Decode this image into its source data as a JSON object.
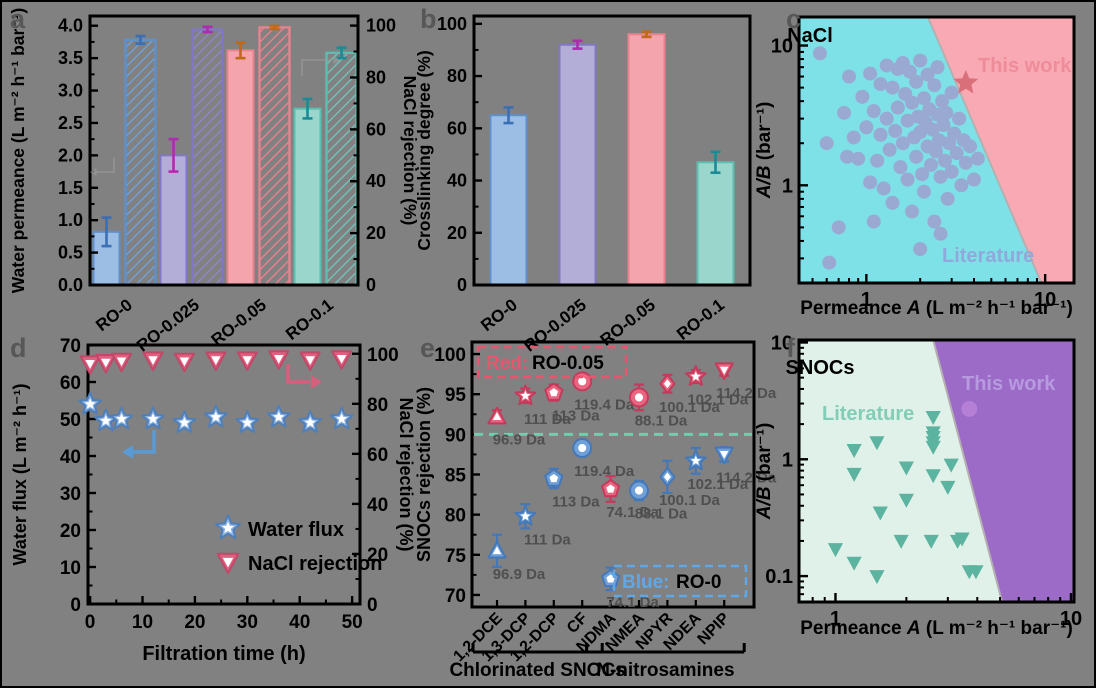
{
  "figure": {
    "background": "#818181"
  },
  "panel_letters": {
    "a": "a",
    "b": "b",
    "c": "c",
    "d": "d",
    "e": "e",
    "f": "f"
  },
  "chart_data": [
    {
      "id": "a",
      "type": "bar",
      "categories": [
        "RO-0",
        "RO-0.025",
        "RO-0.05",
        "RO-0.1"
      ],
      "left_axis": {
        "label": "Water permeance (L m⁻² h⁻¹ bar⁻¹)",
        "ticks": [
          0.0,
          0.5,
          1.0,
          1.5,
          2.0,
          2.5,
          3.0,
          3.5,
          4.0
        ],
        "max": 4.15
      },
      "right_axis": {
        "label": "NaCl rejection (%)",
        "ticks": [
          0,
          20,
          40,
          60,
          80,
          100
        ],
        "max": 103.7
      },
      "series": [
        {
          "name": "Water permeance",
          "style": "solid",
          "values": [
            0.82,
            2.0,
            3.62,
            2.72
          ],
          "errors": [
            0.22,
            0.25,
            0.12,
            0.15
          ]
        },
        {
          "name": "NaCl rejection",
          "style": "hatched",
          "values": [
            94.5,
            98.5,
            99.3,
            89.5
          ],
          "errors": [
            1.5,
            1.0,
            0.6,
            2.0
          ]
        }
      ],
      "bar_fill": [
        "#9DBEE4",
        "#B3AED8",
        "#F4A4AC",
        "#9AD6CC"
      ],
      "bar_edge": [
        "#5E90CC",
        "#8078C2",
        "#E8828E",
        "#5FBDB0"
      ],
      "hatch_color": [
        "#6FA3DC",
        "#8F86CE",
        "#F0808E",
        "#6FC8BC"
      ],
      "err_color": [
        "#3A6FB5",
        "#B02BB0",
        "#BE6A16",
        "#1B8A96"
      ]
    },
    {
      "id": "b",
      "type": "bar",
      "categories": [
        "RO-0",
        "RO-0.025",
        "RO-0.05",
        "RO-0.1"
      ],
      "left_axis": {
        "label": "Crosslinking degree (%)",
        "ticks": [
          0,
          20,
          40,
          60,
          80,
          100
        ],
        "max": 103
      },
      "series": [
        {
          "name": "Crosslinking degree",
          "style": "solid",
          "values": [
            65,
            92,
            96,
            47
          ],
          "errors": [
            3,
            1.5,
            1,
            4
          ]
        }
      ],
      "bar_fill": [
        "#9DBEE4",
        "#B3AED8",
        "#F4A4AC",
        "#9AD6CC"
      ],
      "bar_edge": [
        "#5E90CC",
        "#8078C2",
        "#E8828E",
        "#5FBDB0"
      ],
      "err_color": [
        "#3A6FB5",
        "#B02BB0",
        "#BE6A16",
        "#1B8A96"
      ]
    },
    {
      "id": "c",
      "type": "scatter-log",
      "title": "NaCl",
      "xlabel": {
        "pre": "Permeance ",
        "it": "A",
        "post": " (L m⁻² h⁻¹ bar⁻¹)"
      },
      "ylabel": {
        "it": "A/B",
        "post": " (bar⁻¹)"
      },
      "x_ticks": [
        1,
        10
      ],
      "y_ticks": [
        1,
        10
      ],
      "xlim": [
        0.42,
        14.5
      ],
      "ylim": [
        0.2,
        16
      ],
      "regions": {
        "literature_color": "#7EE1E7",
        "thiswork_color": "#F9A9B3",
        "boundary": {
          "top": [
            2.21,
            16
          ],
          "bottom": [
            9.53,
            0.2
          ]
        }
      },
      "literature_label": "Literature",
      "thiswork_label": "This work",
      "literature_color_text": "#90A9DB",
      "thiswork_color_text": "#EE8C99",
      "point_color": "#9AA9D2",
      "star_color": "#D96F79",
      "this_work_point": [
        3.6,
        5.4
      ],
      "points": [
        [
          0.55,
          8.8
        ],
        [
          0.62,
          0.28
        ],
        [
          0.75,
          3.3
        ],
        [
          0.78,
          1.6
        ],
        [
          0.8,
          6.0
        ],
        [
          0.85,
          2.2
        ],
        [
          0.9,
          1.55
        ],
        [
          0.95,
          4.3
        ],
        [
          1.0,
          2.6
        ],
        [
          1.05,
          6.3
        ],
        [
          1.05,
          1.05
        ],
        [
          1.1,
          3.4
        ],
        [
          1.15,
          1.5
        ],
        [
          1.2,
          5.3
        ],
        [
          1.2,
          2.3
        ],
        [
          1.25,
          0.95
        ],
        [
          1.3,
          7.2
        ],
        [
          1.3,
          3.0
        ],
        [
          1.35,
          1.8
        ],
        [
          1.4,
          5.0
        ],
        [
          1.4,
          0.75
        ],
        [
          1.45,
          2.45
        ],
        [
          1.5,
          6.8
        ],
        [
          1.5,
          3.6
        ],
        [
          1.55,
          1.35
        ],
        [
          1.6,
          7.5
        ],
        [
          1.6,
          2.0
        ],
        [
          1.65,
          4.5
        ],
        [
          1.7,
          1.1
        ],
        [
          1.7,
          2.9
        ],
        [
          1.75,
          6.5
        ],
        [
          1.8,
          3.9
        ],
        [
          1.8,
          0.65
        ],
        [
          1.85,
          2.2
        ],
        [
          1.9,
          5.5
        ],
        [
          1.9,
          1.6
        ],
        [
          1.95,
          3.1
        ],
        [
          2.0,
          7.8
        ],
        [
          2.0,
          2.4
        ],
        [
          2.05,
          1.2
        ],
        [
          2.1,
          4.2
        ],
        [
          2.1,
          0.9
        ],
        [
          2.15,
          2.8
        ],
        [
          2.2,
          6.2
        ],
        [
          2.2,
          1.9
        ],
        [
          2.25,
          3.5
        ],
        [
          2.3,
          1.4
        ],
        [
          2.35,
          2.5
        ],
        [
          2.4,
          5.2
        ],
        [
          2.4,
          0.55
        ],
        [
          2.45,
          1.75
        ],
        [
          2.5,
          3.2
        ],
        [
          2.5,
          7.0
        ],
        [
          2.55,
          2.1
        ],
        [
          2.6,
          1.15
        ],
        [
          2.65,
          4.0
        ],
        [
          2.7,
          2.7
        ],
        [
          2.75,
          1.5
        ],
        [
          2.8,
          3.3
        ],
        [
          2.85,
          0.8
        ],
        [
          2.9,
          2.0
        ],
        [
          3.0,
          4.6
        ],
        [
          3.0,
          1.25
        ],
        [
          3.1,
          2.35
        ],
        [
          3.2,
          1.7
        ],
        [
          3.3,
          3.0
        ],
        [
          3.4,
          1.0
        ],
        [
          3.5,
          2.1
        ],
        [
          3.6,
          1.45
        ],
        [
          3.8,
          1.9
        ],
        [
          4.0,
          1.1
        ],
        [
          4.2,
          1.55
        ],
        [
          0.6,
          2.0
        ],
        [
          0.7,
          0.5
        ],
        [
          1.1,
          0.55
        ],
        [
          2.0,
          0.35
        ],
        [
          2.6,
          0.45
        ]
      ]
    },
    {
      "id": "d",
      "type": "line-scatter",
      "xlabel": "Filtration time (h)",
      "left_axis": {
        "label": "Water flux (L m⁻² h⁻¹)",
        "ticks": [
          0,
          10,
          20,
          30,
          40,
          50,
          60,
          70
        ],
        "max": 70
      },
      "right_axis": {
        "label": "NaCl rejection (%)",
        "ticks": [
          0,
          20,
          40,
          60,
          80,
          100
        ],
        "max": 103.5
      },
      "x_ticks": [
        0,
        10,
        20,
        30,
        40,
        50
      ],
      "time": [
        0,
        3,
        6,
        12,
        18,
        24,
        30,
        36,
        42,
        48
      ],
      "series": [
        {
          "name": "Water flux",
          "axis": "left",
          "marker": "star",
          "values": [
            54,
            49.5,
            50,
            50,
            49,
            50.5,
            49,
            50.5,
            49,
            50
          ],
          "errors": [
            1.5,
            1.2,
            1.2,
            1.8,
            1.2,
            1.5,
            1.2,
            1.2,
            1.5,
            1.2
          ],
          "fill": "#8FB4E4",
          "edge": "#4E7FB8"
        },
        {
          "name": "NaCl rejection",
          "axis": "right",
          "marker": "triangle-down",
          "values": [
            96,
            96.5,
            97,
            97.5,
            97,
            97.5,
            97.5,
            98,
            97.5,
            98
          ],
          "errors": [
            0.8,
            0.8,
            0.8,
            0.8,
            0.8,
            0.8,
            0.8,
            0.8,
            0.8,
            0.8
          ],
          "fill": "#E06080",
          "edge": "#C04868"
        }
      ],
      "legend": [
        {
          "label": "Water flux",
          "marker": "star",
          "fill": "#8FB4E4",
          "edge": "#4E7FB8"
        },
        {
          "label": "NaCl rejection",
          "marker": "triangle-down",
          "fill": "#E06080",
          "edge": "#C04868"
        }
      ],
      "arrow_left_color": "#5B9BD5",
      "arrow_right_color": "#D65F7E"
    },
    {
      "id": "e",
      "type": "category-scatter",
      "ylabel": "SNOCs rejection (%)",
      "y_ticks": [
        70,
        75,
        80,
        85,
        90,
        95,
        100
      ],
      "ylim": [
        68.5,
        101.5
      ],
      "threshold_line": {
        "value": 90,
        "color": "#6FCFAC"
      },
      "legend_red": {
        "colored": "Red:",
        "rest": "RO-0.05",
        "color": "#E8556F"
      },
      "legend_blue": {
        "colored": "Blue:",
        "rest": "RO-0",
        "color": "#5FA8E8"
      },
      "red_color": {
        "fill": "#E8667F",
        "edge": "#C43A5C"
      },
      "blue_color": {
        "fill": "#6FA0D8",
        "edge": "#4478B8"
      },
      "label_color": "#4F4F4F",
      "group_labels": [
        {
          "label": "Chlorinated SNOCs",
          "span": [
            0,
            3
          ]
        },
        {
          "label": "N-nitrosamines",
          "span": [
            4,
            8
          ]
        }
      ],
      "compounds": [
        {
          "name": "1,2-DCE",
          "mw": "96.9 Da",
          "shape": "triangle-up",
          "red": 92.2,
          "red_err": 0.8,
          "blue": 75.5,
          "blue_err": 2.0
        },
        {
          "name": "1,3-DCP",
          "mw": "111 Da",
          "shape": "star",
          "red": 94.8,
          "red_err": 0.9,
          "blue": 79.8,
          "blue_err": 1.5
        },
        {
          "name": "1,2-DCP",
          "mw": "113 Da",
          "shape": "pentagon",
          "red": 95.2,
          "red_err": 1.0,
          "blue": 84.5,
          "blue_err": 1.2
        },
        {
          "name": "CF",
          "mw": "119.4 Da",
          "shape": "circle",
          "red": 96.6,
          "red_err": 0.8,
          "blue": 88.3,
          "blue_err": 1.0
        },
        {
          "name": "NDMA",
          "mw": "74.1 Da",
          "shape": "pentagon",
          "red": 83.2,
          "red_err": 1.6,
          "blue": 72.0,
          "blue_err": 1.4
        },
        {
          "name": "NMEA",
          "mw": "88.1 Da",
          "shape": "circle",
          "red": 94.6,
          "red_err": 1.6,
          "blue": 83.0,
          "blue_err": 1.2
        },
        {
          "name": "NPYR",
          "mw": "100.1 Da",
          "shape": "diamond",
          "red": 96.3,
          "red_err": 1.1,
          "blue": 84.7,
          "blue_err": 2.0
        },
        {
          "name": "NDEA",
          "mw": "102.1 Da",
          "shape": "star",
          "red": 97.2,
          "red_err": 0.8,
          "blue": 86.7,
          "blue_err": 1.6
        },
        {
          "name": "NPIP",
          "mw": "114.2 Da",
          "shape": "triangle-down",
          "red": 98.0,
          "red_err": 0.7,
          "blue": 87.5,
          "blue_err": 0.9
        }
      ]
    },
    {
      "id": "f",
      "type": "scatter-log",
      "title": "SNOCs",
      "xlabel": {
        "pre": "Permeance ",
        "it": "A",
        "post": " (L m⁻² h⁻¹ bar⁻¹)"
      },
      "ylabel": {
        "it": "A/B",
        "post": " (bar⁻¹)"
      },
      "x_ticks": [
        1,
        10
      ],
      "y_ticks": [
        0.1,
        1,
        10
      ],
      "xlim": [
        0.7,
        10.3
      ],
      "ylim": [
        0.06,
        10.5
      ],
      "regions": {
        "literature_color": "#E0F1EA",
        "thiswork_color": "#9B6BC7",
        "boundary": {
          "top": [
            2.6,
            10.5
          ],
          "bottom": [
            5.1,
            0.06
          ]
        }
      },
      "literature_label": "Literature",
      "thiswork_label": "This work",
      "literature_color_text": "#82CDB6",
      "thiswork_color_text": "#B79ADF",
      "point_color": "#5CB3A0",
      "dot_color": "#B47FD4",
      "this_work_point": [
        3.7,
        2.7
      ],
      "points": [
        [
          1.0,
          0.17
        ],
        [
          1.2,
          1.2
        ],
        [
          1.2,
          0.75
        ],
        [
          1.2,
          0.13
        ],
        [
          1.5,
          1.4
        ],
        [
          1.55,
          0.35
        ],
        [
          1.5,
          0.1
        ],
        [
          2.0,
          0.85
        ],
        [
          2.0,
          0.45
        ],
        [
          1.9,
          0.2
        ],
        [
          2.6,
          2.3
        ],
        [
          2.6,
          1.7
        ],
        [
          2.6,
          1.55
        ],
        [
          2.6,
          1.4
        ],
        [
          2.6,
          1.28
        ],
        [
          2.6,
          0.73
        ],
        [
          2.55,
          0.2
        ],
        [
          3.1,
          0.9
        ],
        [
          3.0,
          0.58
        ],
        [
          3.3,
          0.2
        ],
        [
          3.45,
          0.21
        ],
        [
          3.7,
          0.11
        ],
        [
          3.95,
          0.11
        ]
      ]
    }
  ]
}
